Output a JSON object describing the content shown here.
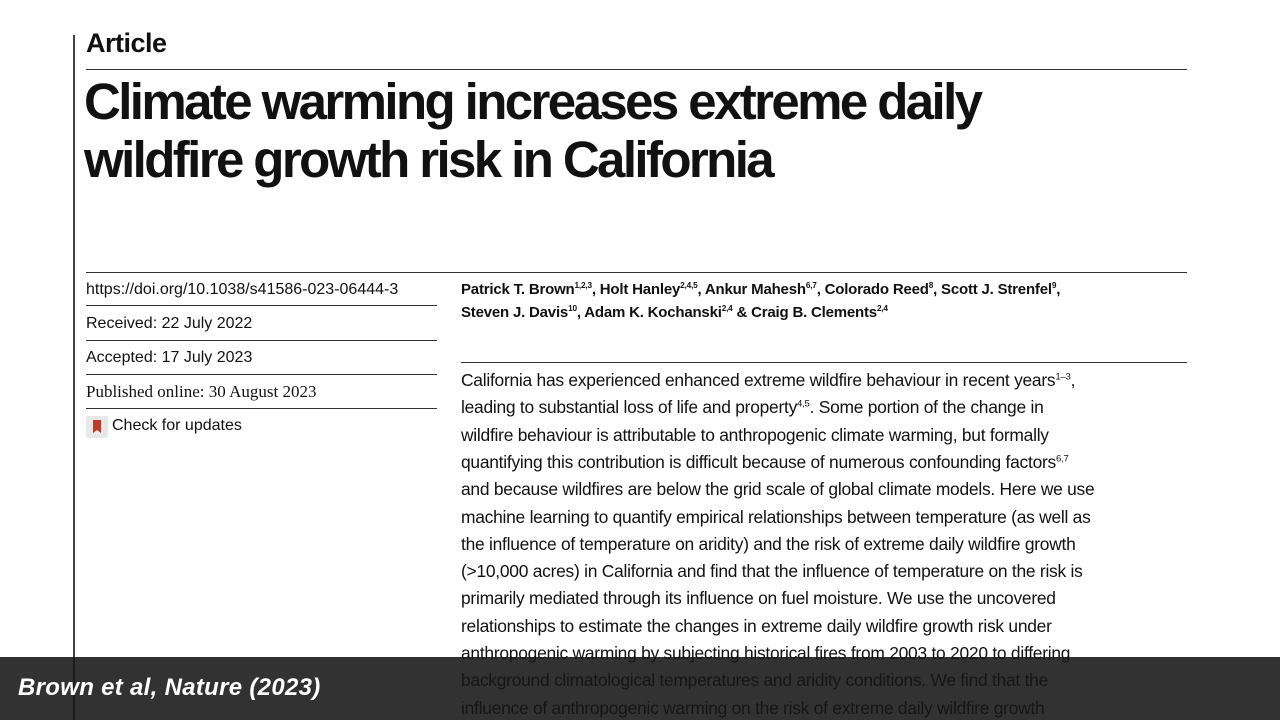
{
  "header": {
    "label": "Article",
    "title": [
      "Climate warming increases extreme daily",
      "wildfire growth risk in California"
    ]
  },
  "meta": {
    "doi": "https://doi.org/10.1038/s41586-023-06444-3",
    "received": "Received: 22 July 2022",
    "accepted": "Accepted: 17 July 2023",
    "published": "Published online: 30 August 2023",
    "updates": "Check for updates"
  },
  "authors": [
    [
      {
        "text": "Patrick T. Brown"
      },
      {
        "sup": "1,2,3"
      },
      {
        "text": ", Holt Hanley"
      },
      {
        "sup": "2,4,5"
      },
      {
        "text": ", Ankur Mahesh"
      },
      {
        "sup": "6,7"
      },
      {
        "text": ", Colorado Reed"
      },
      {
        "sup": "8"
      },
      {
        "text": ", Scott J. Strenfel"
      },
      {
        "sup": "9"
      },
      {
        "text": ","
      }
    ],
    [
      {
        "text": "Steven J. Davis"
      },
      {
        "sup": "10"
      },
      {
        "text": ", Adam K. Kochanski"
      },
      {
        "sup": "2,4"
      },
      {
        "text": " & Craig B. Clements"
      },
      {
        "sup": "2,4"
      }
    ]
  ],
  "abstract": [
    [
      {
        "text": "California has experienced enhanced extreme wildfire behaviour in recent years"
      },
      {
        "sup": "1–3"
      },
      {
        "text": ","
      }
    ],
    [
      {
        "text": "leading to substantial loss of life and property"
      },
      {
        "sup": "4,5"
      },
      {
        "text": ". Some portion of the change in"
      }
    ],
    [
      {
        "text": "wildfire behaviour is attributable to anthropogenic climate warming, but formally"
      }
    ],
    [
      {
        "text": "quantifying this contribution is difficult because of numerous confounding factors"
      },
      {
        "sup": "6,7"
      }
    ],
    [
      {
        "text": "and because wildfires are below the grid scale of global climate models. Here we use"
      }
    ],
    [
      {
        "text": "machine learning to quantify empirical relationships between temperature (as well as"
      }
    ],
    [
      {
        "text": "the influence of temperature on aridity) and the risk of extreme daily wildfire growth"
      }
    ],
    [
      {
        "text": "(>10,000 acres) in California and find that the influence of temperature on the risk is"
      }
    ],
    [
      {
        "text": "primarily mediated through its influence on fuel moisture. We use the uncovered"
      }
    ],
    [
      {
        "text": "relationships to estimate the changes in extreme daily wildfire growth risk under"
      }
    ],
    [
      {
        "text": "anthropogenic warming by subjecting historical fires from 2003 to 2020 to differing"
      }
    ],
    [
      {
        "text": "background climatological temperatures and aridity conditions. We find that the"
      }
    ],
    [
      {
        "text": "influence of anthropogenic warming on the risk of extreme daily wildfire growth"
      }
    ]
  ],
  "caption": "Brown et al, Nature (2023)"
}
